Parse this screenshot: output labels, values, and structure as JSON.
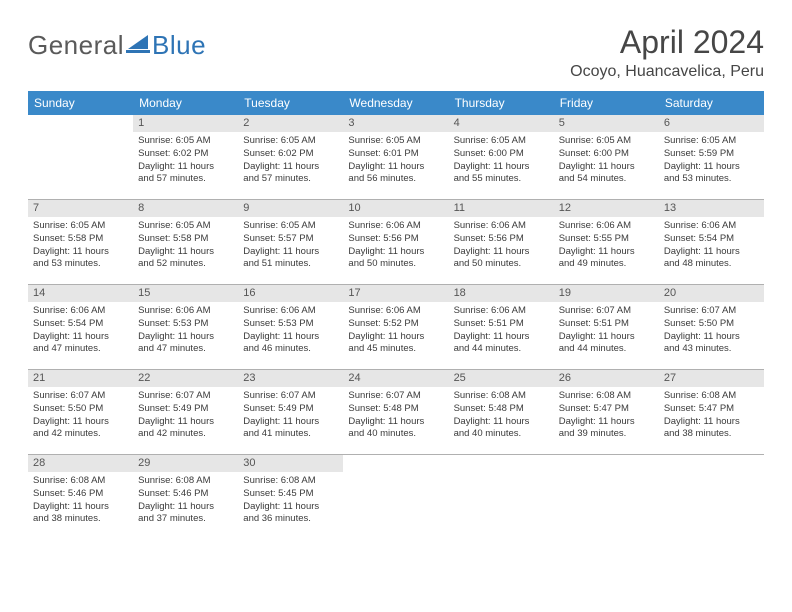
{
  "brand": {
    "name_part1": "General",
    "name_part2": "Blue",
    "sail_color": "#2e74b5",
    "text_color": "#5a5a5a"
  },
  "header": {
    "month_title": "April 2024",
    "location": "Ocoyo, Huancavelica, Peru",
    "title_color": "#464646",
    "title_fontsize": 32,
    "location_fontsize": 16
  },
  "calendar": {
    "header_bg": "#3a89c9",
    "header_fg": "#ffffff",
    "daynum_bg": "#e6e6e6",
    "daynum_fg": "#555555",
    "border_color": "#b0b0b0",
    "text_color": "#3a3a3a",
    "body_fontsize": 9.5,
    "weekdays": [
      "Sunday",
      "Monday",
      "Tuesday",
      "Wednesday",
      "Thursday",
      "Friday",
      "Saturday"
    ],
    "weeks": [
      [
        {
          "empty": true
        },
        {
          "n": "1",
          "sr": "6:05 AM",
          "ss": "6:02 PM",
          "dh": "11",
          "dm": "57"
        },
        {
          "n": "2",
          "sr": "6:05 AM",
          "ss": "6:02 PM",
          "dh": "11",
          "dm": "57"
        },
        {
          "n": "3",
          "sr": "6:05 AM",
          "ss": "6:01 PM",
          "dh": "11",
          "dm": "56"
        },
        {
          "n": "4",
          "sr": "6:05 AM",
          "ss": "6:00 PM",
          "dh": "11",
          "dm": "55"
        },
        {
          "n": "5",
          "sr": "6:05 AM",
          "ss": "6:00 PM",
          "dh": "11",
          "dm": "54"
        },
        {
          "n": "6",
          "sr": "6:05 AM",
          "ss": "5:59 PM",
          "dh": "11",
          "dm": "53"
        }
      ],
      [
        {
          "n": "7",
          "sr": "6:05 AM",
          "ss": "5:58 PM",
          "dh": "11",
          "dm": "53"
        },
        {
          "n": "8",
          "sr": "6:05 AM",
          "ss": "5:58 PM",
          "dh": "11",
          "dm": "52"
        },
        {
          "n": "9",
          "sr": "6:05 AM",
          "ss": "5:57 PM",
          "dh": "11",
          "dm": "51"
        },
        {
          "n": "10",
          "sr": "6:06 AM",
          "ss": "5:56 PM",
          "dh": "11",
          "dm": "50"
        },
        {
          "n": "11",
          "sr": "6:06 AM",
          "ss": "5:56 PM",
          "dh": "11",
          "dm": "50"
        },
        {
          "n": "12",
          "sr": "6:06 AM",
          "ss": "5:55 PM",
          "dh": "11",
          "dm": "49"
        },
        {
          "n": "13",
          "sr": "6:06 AM",
          "ss": "5:54 PM",
          "dh": "11",
          "dm": "48"
        }
      ],
      [
        {
          "n": "14",
          "sr": "6:06 AM",
          "ss": "5:54 PM",
          "dh": "11",
          "dm": "47"
        },
        {
          "n": "15",
          "sr": "6:06 AM",
          "ss": "5:53 PM",
          "dh": "11",
          "dm": "47"
        },
        {
          "n": "16",
          "sr": "6:06 AM",
          "ss": "5:53 PM",
          "dh": "11",
          "dm": "46"
        },
        {
          "n": "17",
          "sr": "6:06 AM",
          "ss": "5:52 PM",
          "dh": "11",
          "dm": "45"
        },
        {
          "n": "18",
          "sr": "6:06 AM",
          "ss": "5:51 PM",
          "dh": "11",
          "dm": "44"
        },
        {
          "n": "19",
          "sr": "6:07 AM",
          "ss": "5:51 PM",
          "dh": "11",
          "dm": "44"
        },
        {
          "n": "20",
          "sr": "6:07 AM",
          "ss": "5:50 PM",
          "dh": "11",
          "dm": "43"
        }
      ],
      [
        {
          "n": "21",
          "sr": "6:07 AM",
          "ss": "5:50 PM",
          "dh": "11",
          "dm": "42"
        },
        {
          "n": "22",
          "sr": "6:07 AM",
          "ss": "5:49 PM",
          "dh": "11",
          "dm": "42"
        },
        {
          "n": "23",
          "sr": "6:07 AM",
          "ss": "5:49 PM",
          "dh": "11",
          "dm": "41"
        },
        {
          "n": "24",
          "sr": "6:07 AM",
          "ss": "5:48 PM",
          "dh": "11",
          "dm": "40"
        },
        {
          "n": "25",
          "sr": "6:08 AM",
          "ss": "5:48 PM",
          "dh": "11",
          "dm": "40"
        },
        {
          "n": "26",
          "sr": "6:08 AM",
          "ss": "5:47 PM",
          "dh": "11",
          "dm": "39"
        },
        {
          "n": "27",
          "sr": "6:08 AM",
          "ss": "5:47 PM",
          "dh": "11",
          "dm": "38"
        }
      ],
      [
        {
          "n": "28",
          "sr": "6:08 AM",
          "ss": "5:46 PM",
          "dh": "11",
          "dm": "38"
        },
        {
          "n": "29",
          "sr": "6:08 AM",
          "ss": "5:46 PM",
          "dh": "11",
          "dm": "37"
        },
        {
          "n": "30",
          "sr": "6:08 AM",
          "ss": "5:45 PM",
          "dh": "11",
          "dm": "36"
        },
        {
          "empty": true
        },
        {
          "empty": true
        },
        {
          "empty": true
        },
        {
          "empty": true
        }
      ]
    ]
  },
  "labels": {
    "sunrise": "Sunrise:",
    "sunset": "Sunset:",
    "daylight": "Daylight:",
    "hours": "hours",
    "and": "and",
    "minutes": "minutes."
  }
}
